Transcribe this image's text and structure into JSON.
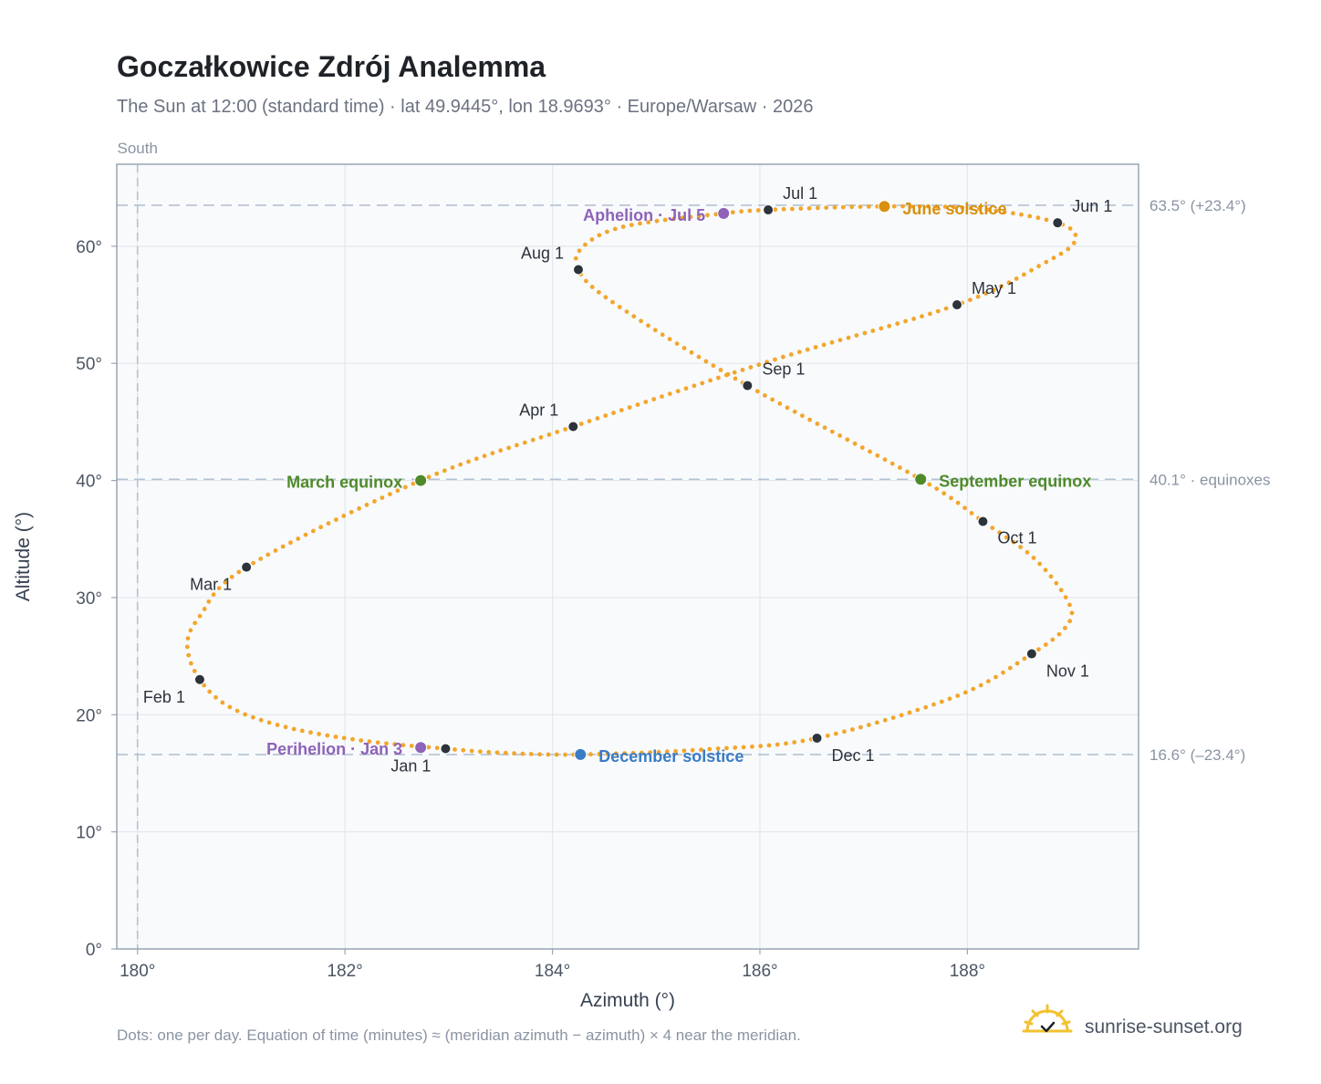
{
  "chart_data": {
    "type": "scatter",
    "title": "Goczałkowice Zdrój Analemma",
    "subtitle": "The Sun at 12:00 (standard time) · lat 49.9445°, lon 18.9693° · Europe/Warsaw · 2026",
    "xlabel": "Azimuth (°)",
    "ylabel": "Altitude (°)",
    "xlim": [
      179.8,
      189.65
    ],
    "ylim": [
      0,
      67
    ],
    "x_ticks": [
      180,
      182,
      184,
      186,
      188
    ],
    "x_tick_labels": [
      "180°",
      "182°",
      "184°",
      "186°",
      "188°"
    ],
    "y_ticks": [
      0,
      10,
      20,
      30,
      40,
      50,
      60
    ],
    "y_tick_labels": [
      "0°",
      "10°",
      "20°",
      "30°",
      "40°",
      "50°",
      "60°"
    ],
    "grid": true,
    "south_line": {
      "x": 180,
      "label": "South"
    },
    "reference_lines": [
      {
        "y": 63.5,
        "label": "63.5° (+23.4°)"
      },
      {
        "y": 40.1,
        "label": "40.1° · equinoxes"
      },
      {
        "y": 16.6,
        "label": "16.6° (–23.4°)"
      }
    ],
    "curve_color": "#f2a62c",
    "month_points": [
      {
        "label": "Jan 1",
        "x": 182.97,
        "y": 17.1
      },
      {
        "label": "Feb 1",
        "x": 180.6,
        "y": 23.0
      },
      {
        "label": "Mar 1",
        "x": 181.05,
        "y": 32.6
      },
      {
        "label": "Apr 1",
        "x": 184.2,
        "y": 44.6
      },
      {
        "label": "May 1",
        "x": 187.9,
        "y": 55.0
      },
      {
        "label": "Jun 1",
        "x": 188.87,
        "y": 62.0
      },
      {
        "label": "Jul 1",
        "x": 186.08,
        "y": 63.1
      },
      {
        "label": "Aug 1",
        "x": 184.25,
        "y": 58.0
      },
      {
        "label": "Sep 1",
        "x": 185.88,
        "y": 48.1
      },
      {
        "label": "Oct 1",
        "x": 188.15,
        "y": 36.5
      },
      {
        "label": "Nov 1",
        "x": 188.62,
        "y": 25.2
      },
      {
        "label": "Dec 1",
        "x": 186.55,
        "y": 18.0
      }
    ],
    "events": [
      {
        "label": "Aphelion · Jul 5",
        "x": 185.65,
        "y": 62.8,
        "color": "#8e63b8"
      },
      {
        "label": "June solstice",
        "x": 187.2,
        "y": 63.4,
        "color": "#d9900f"
      },
      {
        "label": "March equinox",
        "x": 182.73,
        "y": 40.0,
        "color": "#4f8a2a"
      },
      {
        "label": "September equinox",
        "x": 187.55,
        "y": 40.1,
        "color": "#4f8a2a"
      },
      {
        "label": "Perihelion · Jan 3",
        "x": 182.73,
        "y": 17.2,
        "color": "#8e63b8"
      },
      {
        "label": "December solstice",
        "x": 184.27,
        "y": 16.6,
        "color": "#3b7cc4"
      }
    ],
    "curve_keypoints": [
      [
        182.97,
        17.1
      ],
      [
        182.2,
        17.75
      ],
      [
        181.45,
        18.9
      ],
      [
        180.9,
        20.6
      ],
      [
        180.6,
        23.0
      ],
      [
        180.48,
        25.9
      ],
      [
        180.6,
        28.4
      ],
      [
        181.05,
        32.6
      ],
      [
        182.73,
        40.0
      ],
      [
        184.2,
        44.6
      ],
      [
        186.1,
        50.2
      ],
      [
        187.9,
        55.0
      ],
      [
        188.75,
        58.6
      ],
      [
        189.04,
        60.5
      ],
      [
        188.87,
        62.0
      ],
      [
        188.1,
        63.2
      ],
      [
        187.2,
        63.4
      ],
      [
        186.08,
        63.1
      ],
      [
        185.65,
        62.8
      ],
      [
        184.7,
        61.7
      ],
      [
        184.3,
        60.0
      ],
      [
        184.25,
        58.0
      ],
      [
        184.6,
        55.1
      ],
      [
        185.88,
        48.1
      ],
      [
        187.55,
        40.1
      ],
      [
        188.15,
        36.5
      ],
      [
        188.65,
        33.3
      ],
      [
        188.98,
        29.5
      ],
      [
        188.95,
        27.5
      ],
      [
        188.62,
        25.2
      ],
      [
        187.9,
        21.6
      ],
      [
        186.55,
        18.0
      ],
      [
        185.5,
        17.05
      ],
      [
        184.27,
        16.6
      ],
      [
        183.5,
        16.75
      ],
      [
        182.97,
        17.1
      ]
    ]
  },
  "footnote": "Dots: one per day. Equation of time (minutes) ≈ (meridian azimuth − azimuth) × 4 near the meridian.",
  "brand": {
    "name": "sunrise-sunset.org",
    "logo_icon": "sun-logo-icon",
    "color": "#f2c230"
  }
}
